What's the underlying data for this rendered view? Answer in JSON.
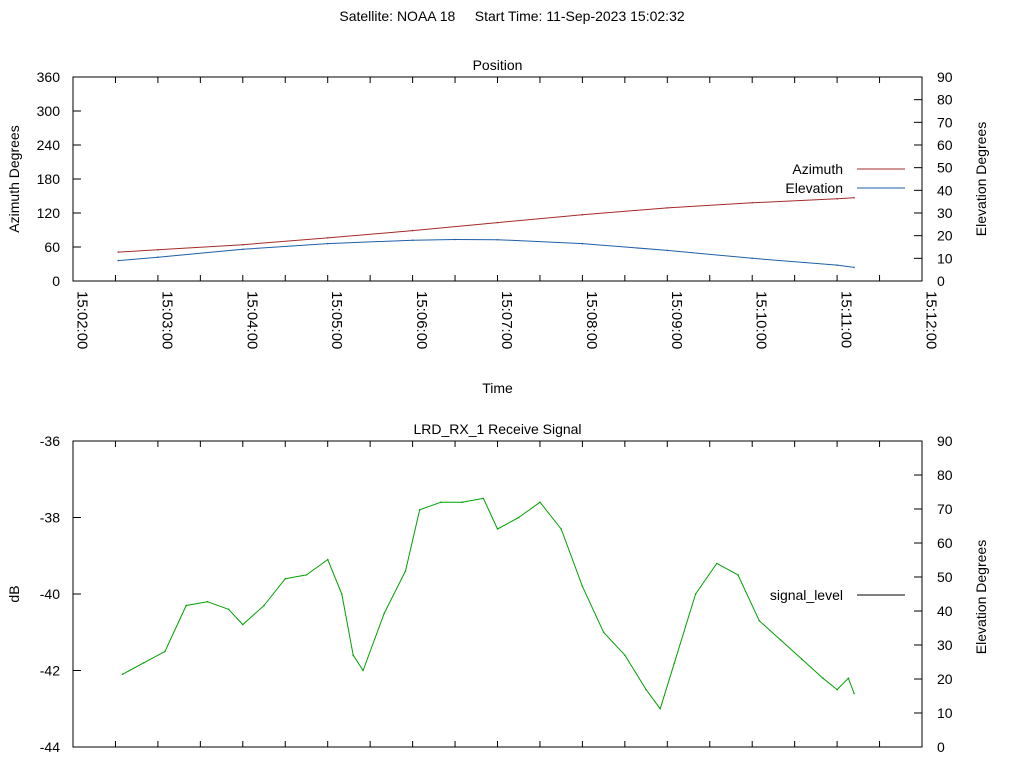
{
  "header": {
    "satellite": "Satellite: NOAA 18",
    "start_time": "Start Time: 11-Sep-2023 15:02:32"
  },
  "chart_data": [
    {
      "type": "line",
      "title": "Position",
      "xlabel": "Time",
      "ylabel": "Azimuth Degrees",
      "y2label": "Elevation Degrees",
      "xlim": [
        "15:02:00",
        "15:12:00"
      ],
      "ylim": [
        0,
        360
      ],
      "y2lim": [
        0,
        90
      ],
      "x_ticks": [
        "15:02:00",
        "15:03:00",
        "15:04:00",
        "15:05:00",
        "15:06:00",
        "15:07:00",
        "15:08:00",
        "15:09:00",
        "15:10:00",
        "15:11:00",
        "15:12:00"
      ],
      "y_ticks": [
        0,
        60,
        120,
        180,
        240,
        300,
        360
      ],
      "y2_ticks": [
        0,
        10,
        20,
        30,
        40,
        50,
        60,
        70,
        80,
        90
      ],
      "grid": false,
      "legend_position": "right",
      "series": [
        {
          "name": "Azimuth",
          "axis": "y",
          "color": "#a52a2a",
          "x": [
            "15:02:32",
            "15:03:00",
            "15:04:00",
            "15:05:00",
            "15:06:00",
            "15:07:00",
            "15:08:00",
            "15:09:00",
            "15:10:00",
            "15:11:00",
            "15:11:12"
          ],
          "values": [
            51,
            55,
            64,
            76,
            89,
            103,
            117,
            129,
            138,
            145,
            147
          ]
        },
        {
          "name": "Elevation",
          "axis": "y2",
          "color": "#1f5fa8",
          "x": [
            "15:02:32",
            "15:03:00",
            "15:04:00",
            "15:05:00",
            "15:06:00",
            "15:06:30",
            "15:07:00",
            "15:08:00",
            "15:09:00",
            "15:10:00",
            "15:11:00",
            "15:11:12"
          ],
          "values": [
            9,
            10.5,
            14,
            16.5,
            18,
            18.3,
            18.2,
            16.5,
            13.5,
            10,
            7,
            6
          ]
        }
      ]
    },
    {
      "type": "line",
      "title": "LRD_RX_1 Receive Signal",
      "xlabel": "",
      "ylabel": "dB",
      "y2label": "Elevation Degrees",
      "xlim": [
        "15:02:00",
        "15:12:00"
      ],
      "ylim": [
        -44,
        -36
      ],
      "y2lim": [
        0,
        90
      ],
      "y_ticks": [
        -44,
        -42,
        -40,
        -38,
        -36
      ],
      "y2_ticks": [
        0,
        10,
        20,
        30,
        40,
        50,
        60,
        70,
        80,
        90
      ],
      "grid": false,
      "legend_position": "right",
      "series": [
        {
          "name": "signal_level",
          "axis": "y",
          "color": "#00a000",
          "legend_color": "#000000",
          "x": [
            "15:02:35",
            "15:02:50",
            "15:03:05",
            "15:03:20",
            "15:03:35",
            "15:03:50",
            "15:04:00",
            "15:04:15",
            "15:04:30",
            "15:04:45",
            "15:05:00",
            "15:05:10",
            "15:05:18",
            "15:05:25",
            "15:05:40",
            "15:05:55",
            "15:06:05",
            "15:06:20",
            "15:06:35",
            "15:06:50",
            "15:07:00",
            "15:07:15",
            "15:07:30",
            "15:07:45",
            "15:08:00",
            "15:08:15",
            "15:08:30",
            "15:08:45",
            "15:08:55",
            "15:09:05",
            "15:09:20",
            "15:09:35",
            "15:09:50",
            "15:10:05",
            "15:10:20",
            "15:10:35",
            "15:10:50",
            "15:11:00",
            "15:11:08",
            "15:11:12"
          ],
          "values": [
            -42.1,
            -41.8,
            -41.5,
            -40.3,
            -40.2,
            -40.4,
            -40.8,
            -40.3,
            -39.6,
            -39.5,
            -39.1,
            -40.0,
            -41.6,
            -42.0,
            -40.5,
            -39.4,
            -37.8,
            -37.6,
            -37.6,
            -37.5,
            -38.3,
            -38.0,
            -37.6,
            -38.3,
            -39.8,
            -41.0,
            -41.6,
            -42.5,
            -43.0,
            -41.8,
            -40.0,
            -39.2,
            -39.5,
            -40.7,
            -41.2,
            -41.7,
            -42.2,
            -42.5,
            -42.2,
            -42.6
          ]
        }
      ]
    }
  ]
}
